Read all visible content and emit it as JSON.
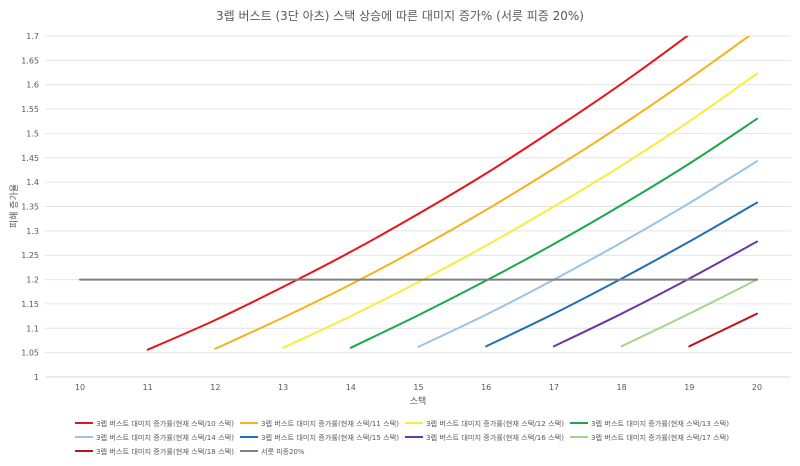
{
  "chart_data": {
    "type": "line",
    "title": "3렙 버스트 (3단 아츠) 스택 상승에 따른 대미지 증가% (서릇 피증 20%)",
    "xlabel": "스택",
    "ylabel": "피해 증가율",
    "xlim": [
      10,
      20
    ],
    "ylim": [
      1,
      1.7
    ],
    "x_ticks": [
      10,
      11,
      12,
      13,
      14,
      15,
      16,
      17,
      18,
      19,
      20
    ],
    "y_ticks": [
      "1",
      "1.05",
      "1.1",
      "1.15",
      "1.2",
      "1.25",
      "1.3",
      "1.35",
      "1.4",
      "1.45",
      "1.5",
      "1.55",
      "1.6",
      "1.65",
      "1.7"
    ],
    "grid": "horizontal",
    "legend_position": "bottom",
    "series": [
      {
        "name": "3렙 버스트 대미지 증가률(현재 스택/10 스택)",
        "color": "#e8131b",
        "points": [
          [
            11,
            1.056
          ],
          [
            12,
            1.117
          ],
          [
            13,
            1.185
          ],
          [
            14,
            1.257
          ],
          [
            15,
            1.335
          ],
          [
            16,
            1.418
          ],
          [
            17,
            1.508
          ],
          [
            18,
            1.602
          ],
          [
            19,
            1.703
          ]
        ]
      },
      {
        "name": "3렙 버스트 대미지 증가률(현재 스택/11 스택)",
        "color": "#f5b21a",
        "points": [
          [
            12,
            1.058
          ],
          [
            13,
            1.122
          ],
          [
            14,
            1.19
          ],
          [
            15,
            1.264
          ],
          [
            16,
            1.343
          ],
          [
            17,
            1.428
          ],
          [
            18,
            1.517
          ],
          [
            19,
            1.612
          ],
          [
            20,
            1.712
          ]
        ]
      },
      {
        "name": "3렙 버스트 대미지 증가률(현재 스택/12 스택)",
        "color": "#f7ee3a",
        "points": [
          [
            13,
            1.06
          ],
          [
            14,
            1.125
          ],
          [
            15,
            1.195
          ],
          [
            16,
            1.27
          ],
          [
            17,
            1.35
          ],
          [
            18,
            1.434
          ],
          [
            19,
            1.525
          ],
          [
            20,
            1.623
          ]
        ]
      },
      {
        "name": "3렙 버스트 대미지 증가률(현재 스택/13 스택)",
        "color": "#1aa84e",
        "points": [
          [
            14,
            1.06
          ],
          [
            15,
            1.127
          ],
          [
            16,
            1.198
          ],
          [
            17,
            1.273
          ],
          [
            18,
            1.353
          ],
          [
            19,
            1.438
          ],
          [
            20,
            1.53
          ]
        ]
      },
      {
        "name": "3렙 버스트 대미지 증가률(현재 스택/14 스택)",
        "color": "#9cc3e3",
        "points": [
          [
            15,
            1.062
          ],
          [
            16,
            1.128
          ],
          [
            17,
            1.2
          ],
          [
            18,
            1.276
          ],
          [
            19,
            1.357
          ],
          [
            20,
            1.443
          ]
        ]
      },
      {
        "name": "3렙 버스트 대미지 증가률(현재 스택/15 스택)",
        "color": "#1f6fb8",
        "points": [
          [
            16,
            1.063
          ],
          [
            17,
            1.13
          ],
          [
            18,
            1.202
          ],
          [
            19,
            1.278
          ],
          [
            20,
            1.358
          ]
        ]
      },
      {
        "name": "3렙 버스트 대미지 증가률(현재 스택/16 스택)",
        "color": "#6b35a5",
        "points": [
          [
            17,
            1.063
          ],
          [
            18,
            1.13
          ],
          [
            19,
            1.202
          ],
          [
            20,
            1.278
          ]
        ]
      },
      {
        "name": "3렙 버스트 대미지 증가률(현재 스택/17 스택)",
        "color": "#a3d68a",
        "points": [
          [
            18,
            1.063
          ],
          [
            19,
            1.13
          ],
          [
            20,
            1.2
          ]
        ]
      },
      {
        "name": "3렙 버스트 대미지 증가률(현재 스택/18 스택)",
        "color": "#c0111f",
        "points": [
          [
            19,
            1.063
          ],
          [
            20,
            1.13
          ]
        ]
      },
      {
        "name": "서릇 피증20%",
        "color": "#7f7f7f",
        "points": [
          [
            10,
            1.2
          ],
          [
            20,
            1.2
          ]
        ]
      }
    ]
  }
}
